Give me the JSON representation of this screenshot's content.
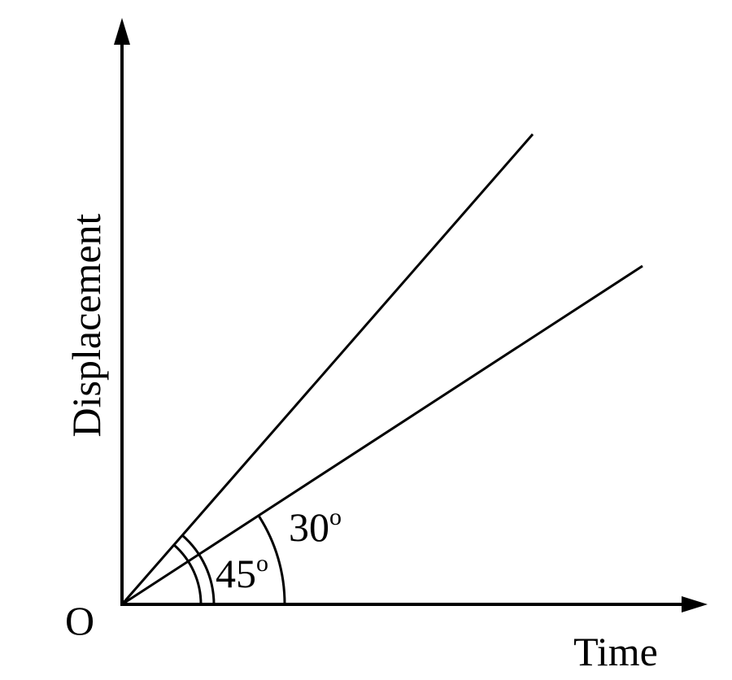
{
  "axes": {
    "y_label": "Displacement",
    "x_label": "Time",
    "origin": "O"
  },
  "angles": [
    {
      "number": "45",
      "degree": "o"
    },
    {
      "number": "30",
      "degree": "o"
    }
  ]
}
